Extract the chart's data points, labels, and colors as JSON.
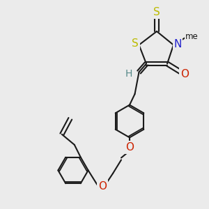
{
  "bg_color": "#ebebeb",
  "bond_color": "#1a1a1a",
  "line_width": 1.5,
  "atom_labels": {
    "S_thiazolidine": {
      "text": "S",
      "color": "#cccc00",
      "fontsize": 11
    },
    "N": {
      "text": "N",
      "color": "#2222cc",
      "fontsize": 11
    },
    "O_carbonyl": {
      "text": "O",
      "color": "#cc2200",
      "fontsize": 11
    },
    "S_thioxo": {
      "text": "S",
      "color": "#cccc00",
      "fontsize": 11
    },
    "H_vinyl": {
      "text": "H",
      "color": "#558888",
      "fontsize": 10
    },
    "O_ether1": {
      "text": "O",
      "color": "#cc2200",
      "fontsize": 11
    },
    "O_ether2": {
      "text": "O",
      "color": "#cc2200",
      "fontsize": 11
    },
    "Me": {
      "text": "me",
      "color": "#1a1a1a",
      "fontsize": 9
    }
  }
}
